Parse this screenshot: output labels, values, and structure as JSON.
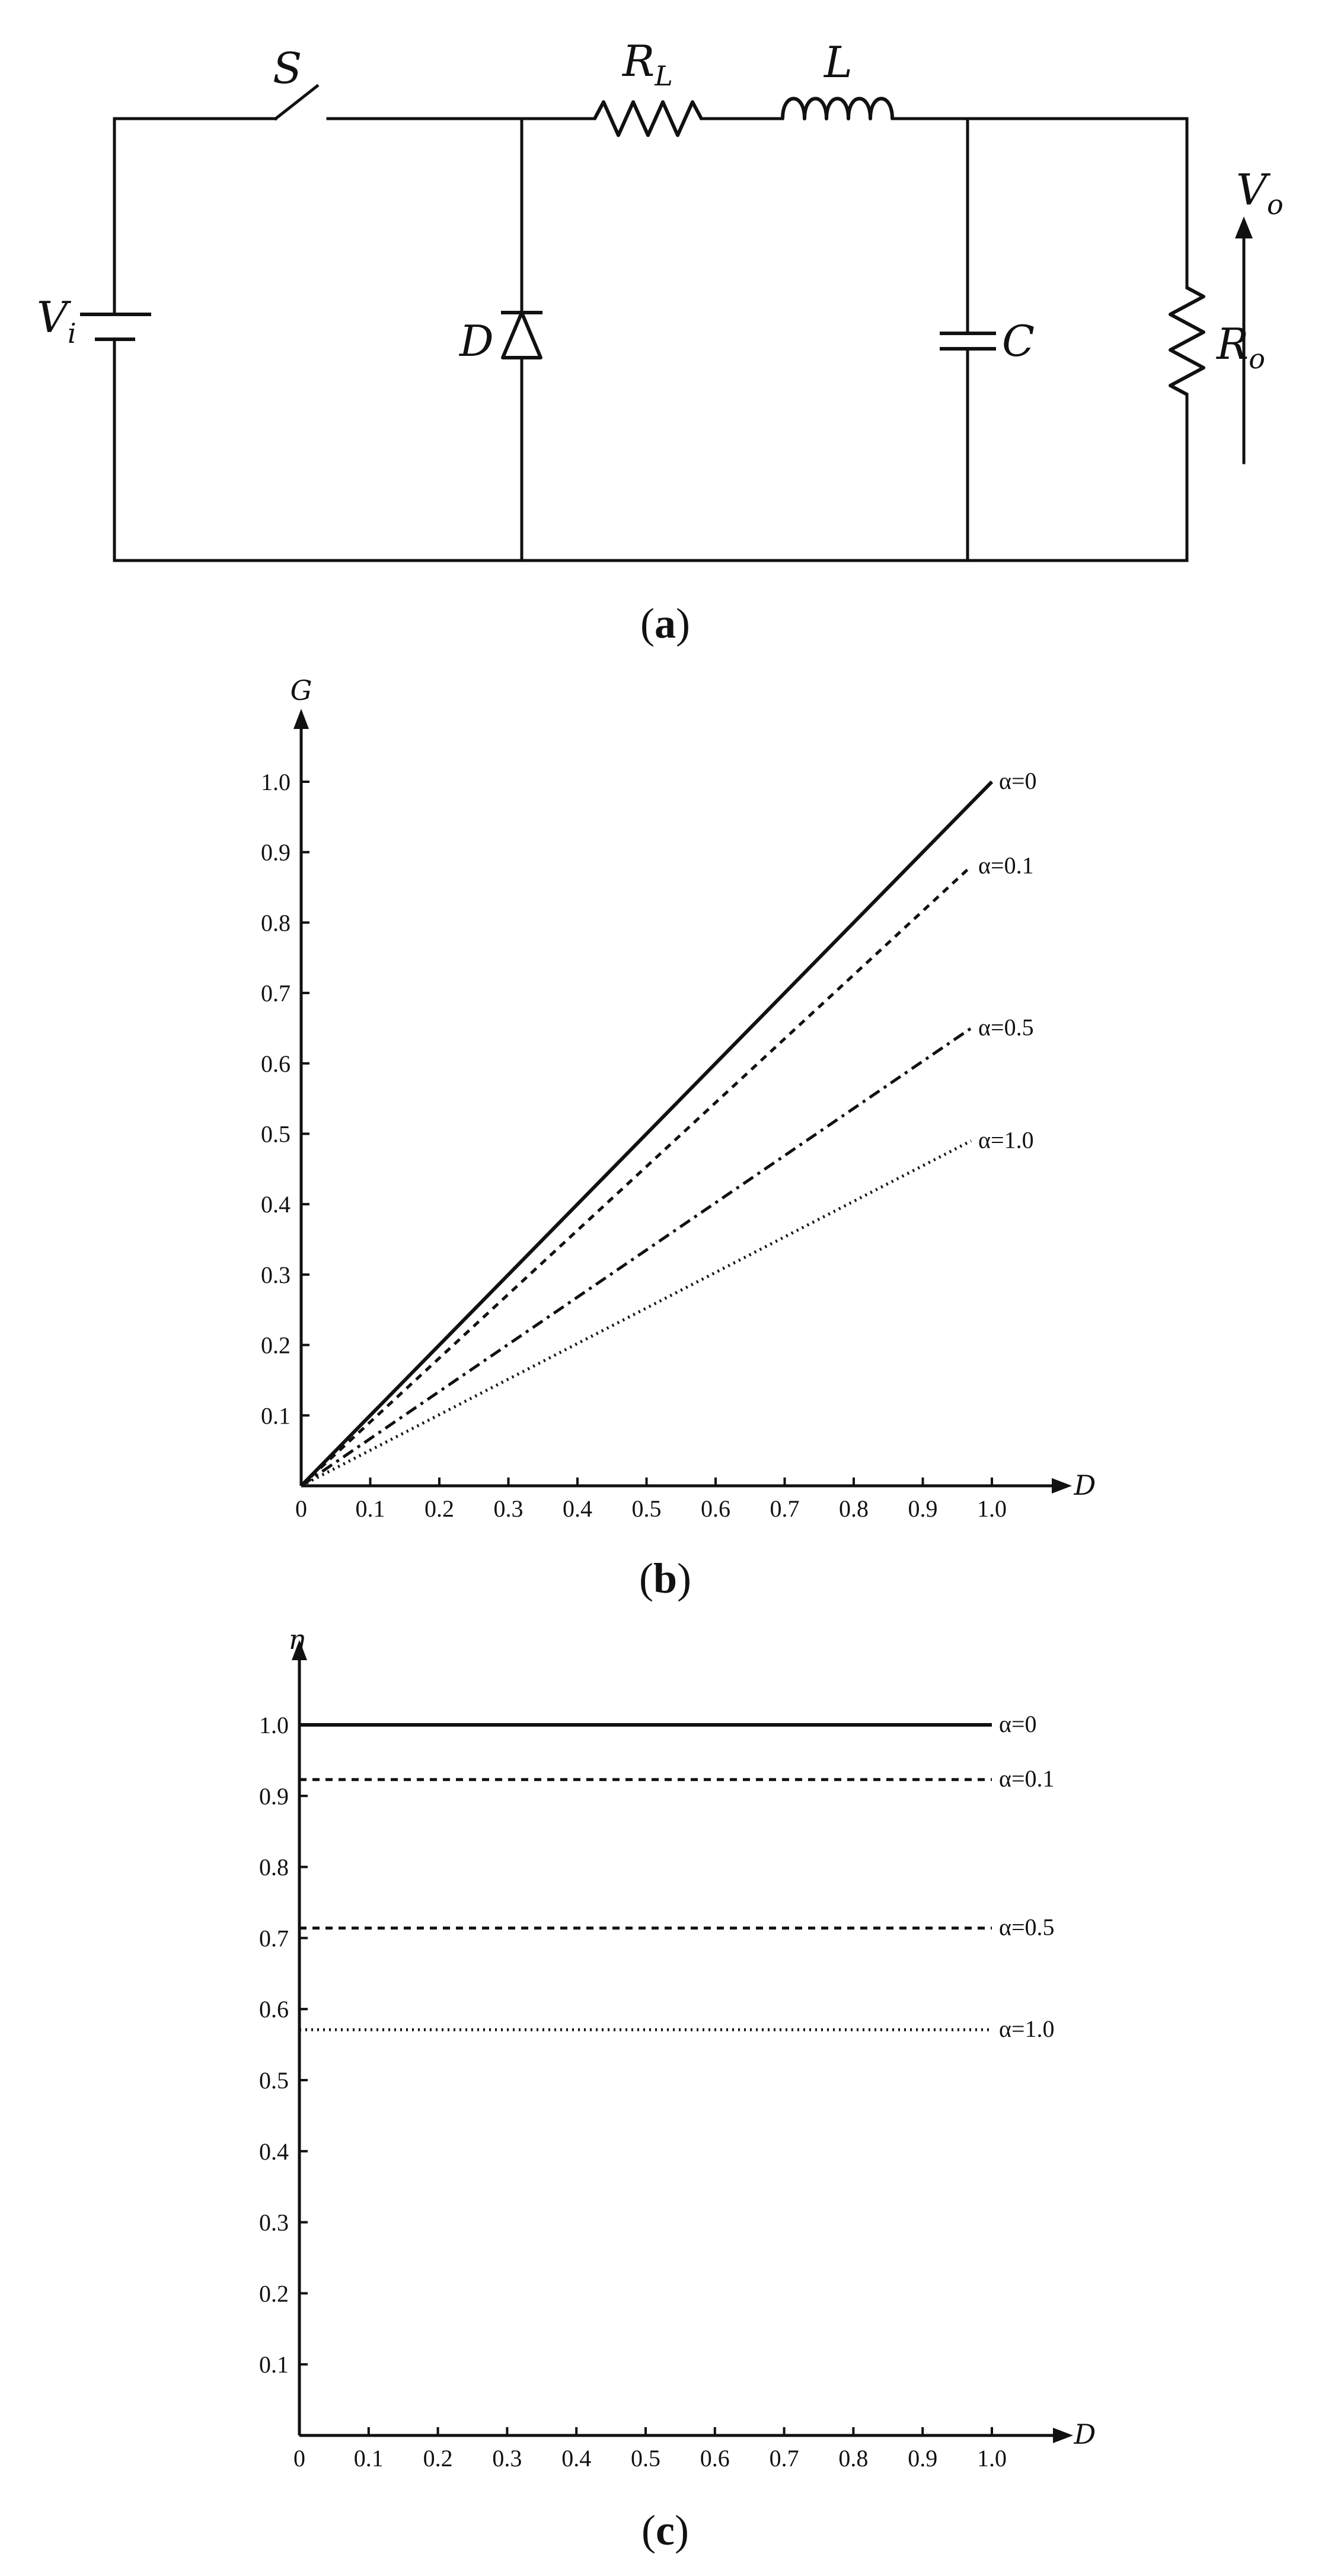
{
  "circuit": {
    "labels": {
      "switch": "S",
      "rl_main": "R",
      "rl_sub": "L",
      "inductor": "L",
      "vi_main": "V",
      "vi_sub": "i",
      "diode": "D",
      "capacitor": "C",
      "ro_main": "R",
      "ro_sub": "o",
      "vo_main": "V",
      "vo_sub": "o"
    },
    "panel_label": {
      "open": "(",
      "letter": "a",
      "close": ")"
    }
  },
  "chart_data": [
    {
      "panel": "b",
      "type": "line",
      "title": "",
      "ylabel": "G",
      "xlabel": "D",
      "xlim": [
        0,
        1.0
      ],
      "ylim": [
        0,
        1.0
      ],
      "x_ticks": [
        "0",
        "0.1",
        "0.2",
        "0.3",
        "0.4",
        "0.5",
        "0.6",
        "0.7",
        "0.8",
        "0.9",
        "1.0"
      ],
      "y_ticks": [
        "0.1",
        "0.2",
        "0.3",
        "0.4",
        "0.5",
        "0.6",
        "0.7",
        "0.8",
        "0.9",
        "1.0"
      ],
      "grid": false,
      "panel_label": {
        "open": "(",
        "letter": "b",
        "close": ")"
      },
      "series": [
        {
          "name": "α=0",
          "style": "solid",
          "x": [
            0,
            1.0
          ],
          "y": [
            0,
            1.0
          ]
        },
        {
          "name": "α=0.1",
          "style": "dashed",
          "x": [
            0,
            0.97
          ],
          "y": [
            0,
            0.88
          ]
        },
        {
          "name": "α=0.5",
          "style": "dashdot",
          "x": [
            0,
            0.97
          ],
          "y": [
            0,
            0.65
          ]
        },
        {
          "name": "α=1.0",
          "style": "dotted",
          "x": [
            0,
            0.97
          ],
          "y": [
            0,
            0.49
          ]
        }
      ]
    },
    {
      "panel": "c",
      "type": "line",
      "title": "",
      "ylabel": "η",
      "xlabel": "D",
      "xlim": [
        0,
        1.0
      ],
      "ylim": [
        0,
        1.0
      ],
      "x_ticks": [
        "0",
        "0.1",
        "0.2",
        "0.3",
        "0.4",
        "0.5",
        "0.6",
        "0.7",
        "0.8",
        "0.9",
        "1.0"
      ],
      "y_ticks": [
        "0.1",
        "0.2",
        "0.3",
        "0.4",
        "0.5",
        "0.6",
        "0.7",
        "0.8",
        "0.9",
        "1.0"
      ],
      "grid": false,
      "panel_label": {
        "open": "(",
        "letter": "c",
        "close": ")"
      },
      "series": [
        {
          "name": "α=0",
          "style": "solid",
          "x": [
            0,
            1.0
          ],
          "y": [
            1.0,
            1.0
          ]
        },
        {
          "name": "α=0.1",
          "style": "dashed",
          "x": [
            0,
            1.0
          ],
          "y": [
            0.923,
            0.923
          ]
        },
        {
          "name": "α=0.5",
          "style": "dashed",
          "x": [
            0,
            1.0
          ],
          "y": [
            0.714,
            0.714
          ]
        },
        {
          "name": "α=1.0",
          "style": "dotted",
          "x": [
            0,
            1.0
          ],
          "y": [
            0.571,
            0.571
          ]
        }
      ]
    }
  ]
}
